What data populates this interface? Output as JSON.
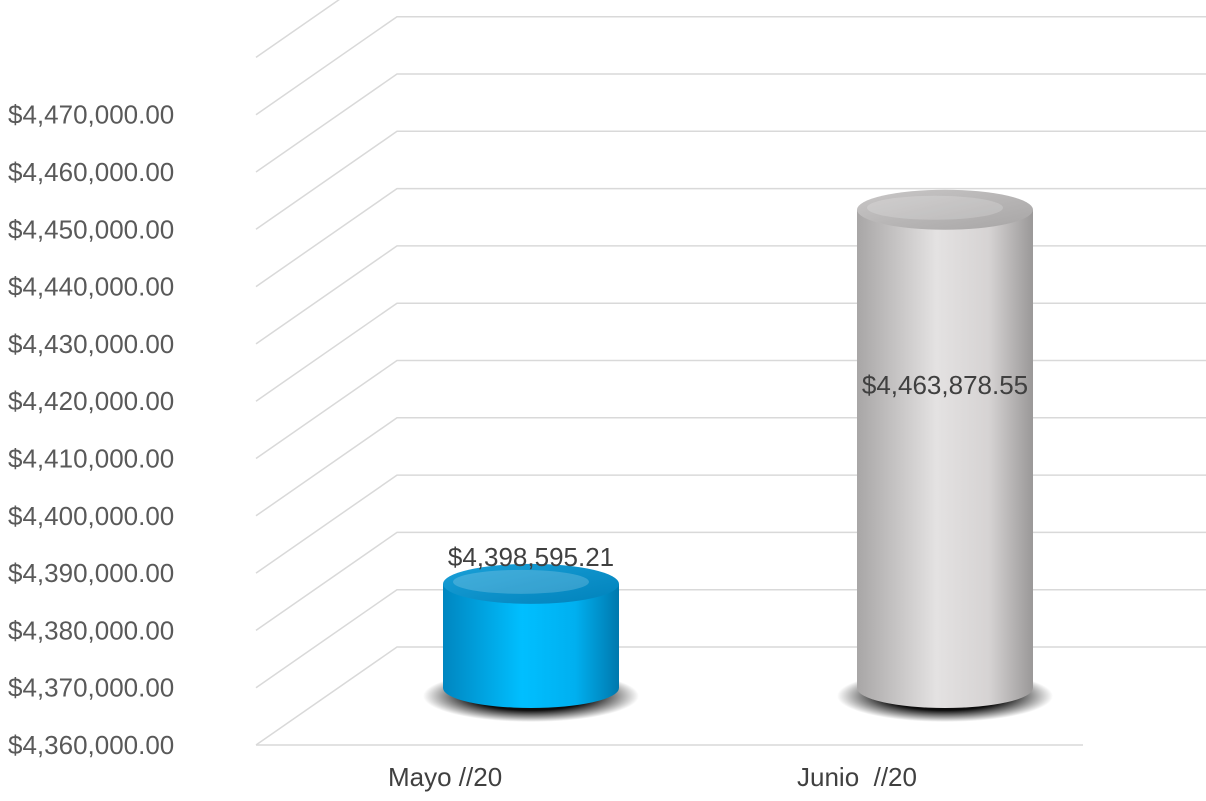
{
  "chart_data": {
    "type": "bar",
    "style": "3d-cylinder",
    "title": "",
    "xlabel": "",
    "ylabel": "",
    "categories": [
      "Mayo //20",
      "Junio  //20"
    ],
    "values": [
      4398595.21,
      4463878.55
    ],
    "data_labels": [
      "$4,398,595.21",
      "$4,463,878.55"
    ],
    "colors": [
      "#00b0f0",
      "#d0cece"
    ],
    "ylim": [
      4360000,
      4480000
    ],
    "y_ticks": [
      4360000,
      4370000,
      4380000,
      4390000,
      4400000,
      4410000,
      4420000,
      4430000,
      4440000,
      4450000,
      4460000,
      4470000
    ],
    "y_tick_labels": [
      "$4,360,000.00",
      "$4,370,000.00",
      "$4,380,000.00",
      "$4,390,000.00",
      "$4,400,000.00",
      "$4,410,000.00",
      "$4,420,000.00",
      "$4,430,000.00",
      "$4,440,000.00",
      "$4,450,000.00",
      "$4,460,000.00",
      "$4,470,000.00"
    ],
    "grid": true,
    "legend": "none"
  }
}
